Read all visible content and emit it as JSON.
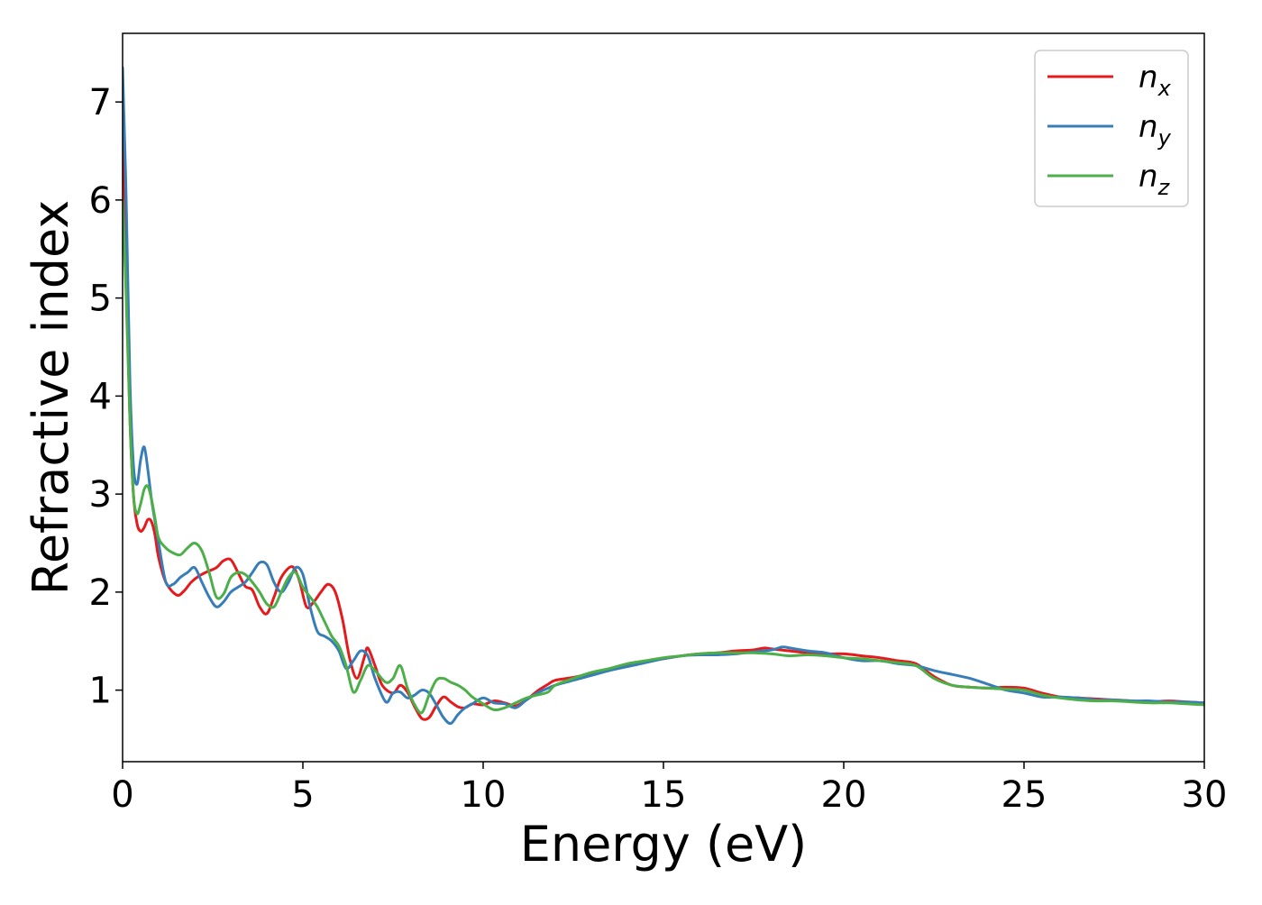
{
  "chart_data": {
    "type": "line",
    "title": "",
    "xlabel": "Energy (eV)",
    "ylabel": "Refractive index",
    "xlim": [
      0,
      30
    ],
    "ylim": [
      0.27,
      7.7
    ],
    "xticks": [
      0,
      5,
      10,
      15,
      20,
      25,
      30
    ],
    "yticks": [
      1,
      2,
      3,
      4,
      5,
      6,
      7
    ],
    "grid": false,
    "legend_position": "top-right",
    "series": [
      {
        "name": "n_x",
        "symbol": "n",
        "subscript": "x",
        "color": "#e41a1c",
        "x": [
          0.0,
          0.1,
          0.2,
          0.3,
          0.4,
          0.5,
          0.6,
          0.7,
          0.8,
          0.9,
          1.0,
          1.2,
          1.5,
          1.7,
          1.9,
          2.1,
          2.3,
          2.6,
          2.8,
          3.0,
          3.2,
          3.4,
          3.6,
          3.8,
          4.0,
          4.2,
          4.4,
          4.7,
          4.9,
          5.1,
          5.3,
          5.5,
          5.7,
          5.9,
          6.1,
          6.3,
          6.5,
          6.7,
          6.8,
          7.0,
          7.2,
          7.5,
          7.7,
          7.9,
          8.1,
          8.3,
          8.5,
          8.7,
          8.9,
          9.1,
          9.3,
          9.5,
          9.7,
          10.0,
          10.3,
          10.6,
          10.9,
          11.2,
          11.5,
          11.8,
          12.0,
          12.5,
          13.0,
          13.5,
          14.0,
          14.5,
          15.0,
          15.5,
          16.0,
          16.5,
          17.0,
          17.5,
          17.8,
          18.0,
          18.5,
          19.0,
          19.5,
          20.0,
          20.5,
          21.0,
          21.5,
          22.0,
          22.5,
          23.0,
          23.5,
          24.0,
          24.5,
          25.0,
          25.5,
          26.0,
          26.5,
          27.0,
          27.5,
          28.0,
          28.5,
          29.0,
          29.5,
          30.0
        ],
        "values": [
          7.2,
          5.2,
          3.8,
          3.0,
          2.7,
          2.62,
          2.66,
          2.74,
          2.72,
          2.58,
          2.35,
          2.1,
          1.97,
          2.01,
          2.1,
          2.16,
          2.2,
          2.25,
          2.32,
          2.33,
          2.2,
          2.06,
          2.02,
          1.85,
          1.78,
          1.95,
          2.15,
          2.26,
          2.12,
          1.85,
          1.9,
          2.0,
          2.08,
          2.0,
          1.72,
          1.32,
          1.12,
          1.33,
          1.43,
          1.25,
          1.05,
          0.97,
          1.05,
          0.98,
          0.83,
          0.71,
          0.72,
          0.84,
          0.93,
          0.88,
          0.83,
          0.82,
          0.86,
          0.85,
          0.89,
          0.87,
          0.84,
          0.9,
          0.99,
          1.06,
          1.1,
          1.13,
          1.17,
          1.21,
          1.25,
          1.29,
          1.32,
          1.35,
          1.37,
          1.38,
          1.4,
          1.41,
          1.43,
          1.42,
          1.4,
          1.38,
          1.37,
          1.37,
          1.35,
          1.33,
          1.3,
          1.27,
          1.14,
          1.05,
          1.03,
          1.02,
          1.03,
          1.02,
          0.97,
          0.93,
          0.92,
          0.91,
          0.9,
          0.89,
          0.88,
          0.89,
          0.88,
          0.87
        ]
      },
      {
        "name": "n_y",
        "symbol": "n",
        "subscript": "y",
        "color": "#377eb8",
        "x": [
          0.0,
          0.1,
          0.2,
          0.3,
          0.4,
          0.5,
          0.6,
          0.7,
          0.8,
          0.9,
          1.0,
          1.2,
          1.4,
          1.6,
          1.8,
          2.0,
          2.2,
          2.4,
          2.6,
          2.8,
          3.0,
          3.2,
          3.4,
          3.6,
          3.8,
          4.0,
          4.2,
          4.4,
          4.6,
          4.8,
          5.0,
          5.2,
          5.4,
          5.6,
          5.8,
          6.0,
          6.2,
          6.4,
          6.6,
          6.8,
          7.0,
          7.3,
          7.5,
          7.7,
          7.9,
          8.1,
          8.3,
          8.5,
          8.7,
          8.9,
          9.1,
          9.3,
          9.5,
          9.7,
          10.0,
          10.3,
          10.6,
          10.9,
          11.2,
          11.5,
          11.8,
          12.0,
          12.5,
          13.0,
          13.5,
          14.0,
          14.5,
          15.0,
          15.5,
          16.0,
          16.5,
          17.0,
          17.5,
          18.0,
          18.3,
          18.5,
          19.0,
          19.5,
          20.0,
          20.5,
          21.0,
          21.5,
          22.0,
          22.5,
          23.0,
          23.5,
          24.0,
          24.5,
          25.0,
          25.5,
          26.0,
          26.5,
          27.0,
          27.5,
          28.0,
          28.5,
          29.0,
          29.5,
          30.0
        ],
        "values": [
          7.35,
          6.0,
          4.2,
          3.3,
          3.1,
          3.35,
          3.48,
          3.25,
          2.95,
          2.72,
          2.5,
          2.1,
          2.08,
          2.15,
          2.2,
          2.25,
          2.1,
          1.95,
          1.85,
          1.9,
          2.0,
          2.05,
          2.1,
          2.2,
          2.3,
          2.28,
          2.1,
          2.0,
          2.1,
          2.25,
          2.18,
          1.85,
          1.6,
          1.55,
          1.5,
          1.4,
          1.22,
          1.3,
          1.4,
          1.35,
          1.12,
          0.88,
          0.97,
          0.98,
          0.92,
          0.95,
          1.0,
          0.97,
          0.85,
          0.72,
          0.66,
          0.75,
          0.82,
          0.86,
          0.92,
          0.87,
          0.86,
          0.82,
          0.9,
          0.97,
          1.02,
          1.05,
          1.1,
          1.15,
          1.2,
          1.24,
          1.28,
          1.32,
          1.35,
          1.36,
          1.36,
          1.37,
          1.39,
          1.41,
          1.44,
          1.43,
          1.4,
          1.38,
          1.33,
          1.3,
          1.3,
          1.27,
          1.25,
          1.2,
          1.16,
          1.12,
          1.06,
          1.0,
          0.97,
          0.93,
          0.93,
          0.92,
          0.9,
          0.9,
          0.89,
          0.89,
          0.88,
          0.88,
          0.87
        ]
      },
      {
        "name": "n_z",
        "symbol": "n",
        "subscript": "z",
        "color": "#4daf4a",
        "x": [
          0.0,
          0.1,
          0.2,
          0.3,
          0.4,
          0.5,
          0.6,
          0.7,
          0.8,
          0.9,
          1.0,
          1.2,
          1.4,
          1.6,
          1.8,
          2.0,
          2.2,
          2.4,
          2.6,
          2.8,
          3.0,
          3.2,
          3.4,
          3.6,
          3.8,
          4.0,
          4.2,
          4.4,
          4.6,
          4.8,
          5.0,
          5.2,
          5.4,
          5.6,
          5.8,
          6.0,
          6.2,
          6.4,
          6.6,
          6.8,
          7.0,
          7.3,
          7.5,
          7.7,
          7.9,
          8.1,
          8.3,
          8.5,
          8.7,
          8.9,
          9.1,
          9.3,
          9.5,
          9.7,
          10.0,
          10.3,
          10.6,
          10.9,
          11.2,
          11.5,
          11.8,
          12.0,
          12.5,
          13.0,
          13.5,
          14.0,
          14.5,
          15.0,
          15.5,
          16.0,
          16.5,
          17.0,
          17.5,
          18.0,
          18.5,
          19.0,
          19.5,
          20.0,
          20.5,
          21.0,
          21.5,
          22.0,
          22.5,
          23.0,
          23.5,
          24.0,
          24.5,
          25.0,
          25.5,
          26.0,
          26.5,
          27.0,
          27.5,
          28.0,
          28.5,
          29.0,
          29.5,
          30.0
        ],
        "values": [
          6.0,
          5.0,
          3.8,
          3.0,
          2.8,
          2.9,
          3.05,
          3.08,
          2.95,
          2.75,
          2.55,
          2.45,
          2.4,
          2.38,
          2.45,
          2.5,
          2.42,
          2.2,
          1.95,
          1.98,
          2.15,
          2.2,
          2.18,
          2.1,
          2.0,
          1.88,
          1.85,
          2.0,
          2.15,
          2.2,
          2.05,
          1.95,
          1.85,
          1.7,
          1.55,
          1.45,
          1.25,
          0.98,
          1.1,
          1.25,
          1.2,
          1.08,
          1.12,
          1.25,
          1.02,
          0.85,
          0.77,
          0.95,
          1.1,
          1.12,
          1.08,
          1.05,
          1.0,
          0.93,
          0.86,
          0.8,
          0.82,
          0.87,
          0.92,
          0.95,
          0.98,
          1.05,
          1.12,
          1.18,
          1.22,
          1.27,
          1.3,
          1.33,
          1.35,
          1.37,
          1.38,
          1.38,
          1.38,
          1.37,
          1.35,
          1.36,
          1.35,
          1.33,
          1.32,
          1.3,
          1.28,
          1.25,
          1.12,
          1.05,
          1.03,
          1.02,
          1.01,
          1.0,
          0.95,
          0.92,
          0.9,
          0.89,
          0.89,
          0.88,
          0.87,
          0.87,
          0.86,
          0.85
        ]
      }
    ]
  }
}
